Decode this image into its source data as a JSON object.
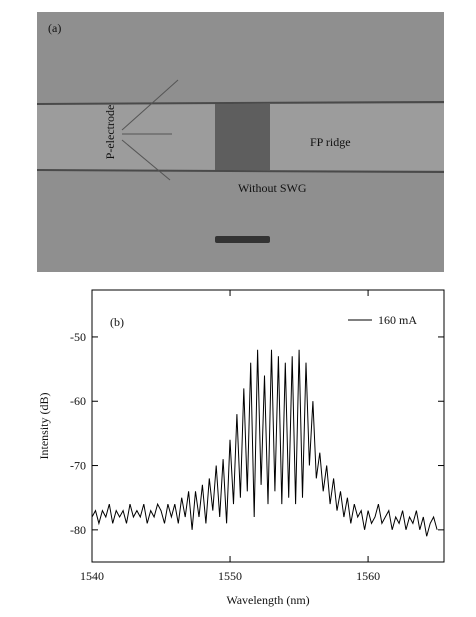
{
  "panel_a": {
    "label": "(a)",
    "electrode": "P-electrode",
    "ridge": "FP ridge",
    "without": "Without SWG"
  },
  "chart_data": {
    "type": "line",
    "panel_label": "(b)",
    "x_label": "Wavelength (nm)",
    "y_label": "Intensity (dB)",
    "x": [
      1540,
      1540.25,
      1540.5,
      1540.75,
      1541,
      1541.25,
      1541.5,
      1541.75,
      1542,
      1542.25,
      1542.5,
      1542.75,
      1543,
      1543.25,
      1543.5,
      1543.75,
      1544,
      1544.25,
      1544.5,
      1544.75,
      1545,
      1545.25,
      1545.5,
      1545.75,
      1546,
      1546.25,
      1546.5,
      1546.75,
      1547,
      1547.25,
      1547.5,
      1547.75,
      1548,
      1548.25,
      1548.5,
      1548.75,
      1549,
      1549.25,
      1549.5,
      1549.75,
      1550,
      1550.25,
      1550.5,
      1550.75,
      1551,
      1551.25,
      1551.5,
      1551.75,
      1552,
      1552.25,
      1552.5,
      1552.75,
      1553,
      1553.25,
      1553.5,
      1553.75,
      1554,
      1554.25,
      1554.5,
      1554.75,
      1555,
      1555.25,
      1555.5,
      1555.75,
      1556,
      1556.25,
      1556.5,
      1556.75,
      1557,
      1557.25,
      1557.5,
      1557.75,
      1558,
      1558.25,
      1558.5,
      1558.75,
      1559,
      1559.25,
      1559.5,
      1559.75,
      1560,
      1560.25,
      1560.5,
      1560.75,
      1561,
      1561.25,
      1561.5,
      1561.75,
      1562,
      1562.25,
      1562.5,
      1562.75,
      1563,
      1563.25,
      1563.5,
      1563.75,
      1564,
      1564.25,
      1564.5,
      1564.75,
      1565
    ],
    "series": [
      {
        "name": "160 mA",
        "color": "#000000",
        "values": [
          -78,
          -77,
          -79,
          -77,
          -78,
          -76,
          -79,
          -77,
          -78,
          -77,
          -79,
          -76,
          -78,
          -77,
          -78,
          -76,
          -79,
          -77,
          -78,
          -76,
          -77,
          -79,
          -76,
          -78,
          -76,
          -79,
          -75,
          -78,
          -74,
          -80,
          -74,
          -78,
          -73,
          -79,
          -72,
          -77,
          -70,
          -78,
          -69,
          -79,
          -66,
          -76,
          -62,
          -75,
          -58,
          -74,
          -54,
          -78,
          -52,
          -73,
          -56,
          -76,
          -52,
          -74,
          -53,
          -76,
          -54,
          -75,
          -53,
          -76,
          -52,
          -75,
          -54,
          -70,
          -60,
          -72,
          -68,
          -74,
          -70,
          -76,
          -72,
          -77,
          -74,
          -78,
          -75,
          -79,
          -76,
          -78,
          -77,
          -80,
          -77,
          -79,
          -78,
          -76,
          -79,
          -78,
          -77,
          -80,
          -78,
          -79,
          -77,
          -80,
          -78,
          -79,
          -77,
          -80,
          -78,
          -81,
          -79,
          -78,
          -80
        ]
      }
    ],
    "xlim": [
      1540,
      1565.5
    ],
    "ylim": [
      -85,
      -42.7
    ],
    "xticks": [
      1540,
      1550,
      1560
    ],
    "yticks": [
      -50,
      -60,
      -70,
      -80
    ],
    "legend": "upper right"
  }
}
